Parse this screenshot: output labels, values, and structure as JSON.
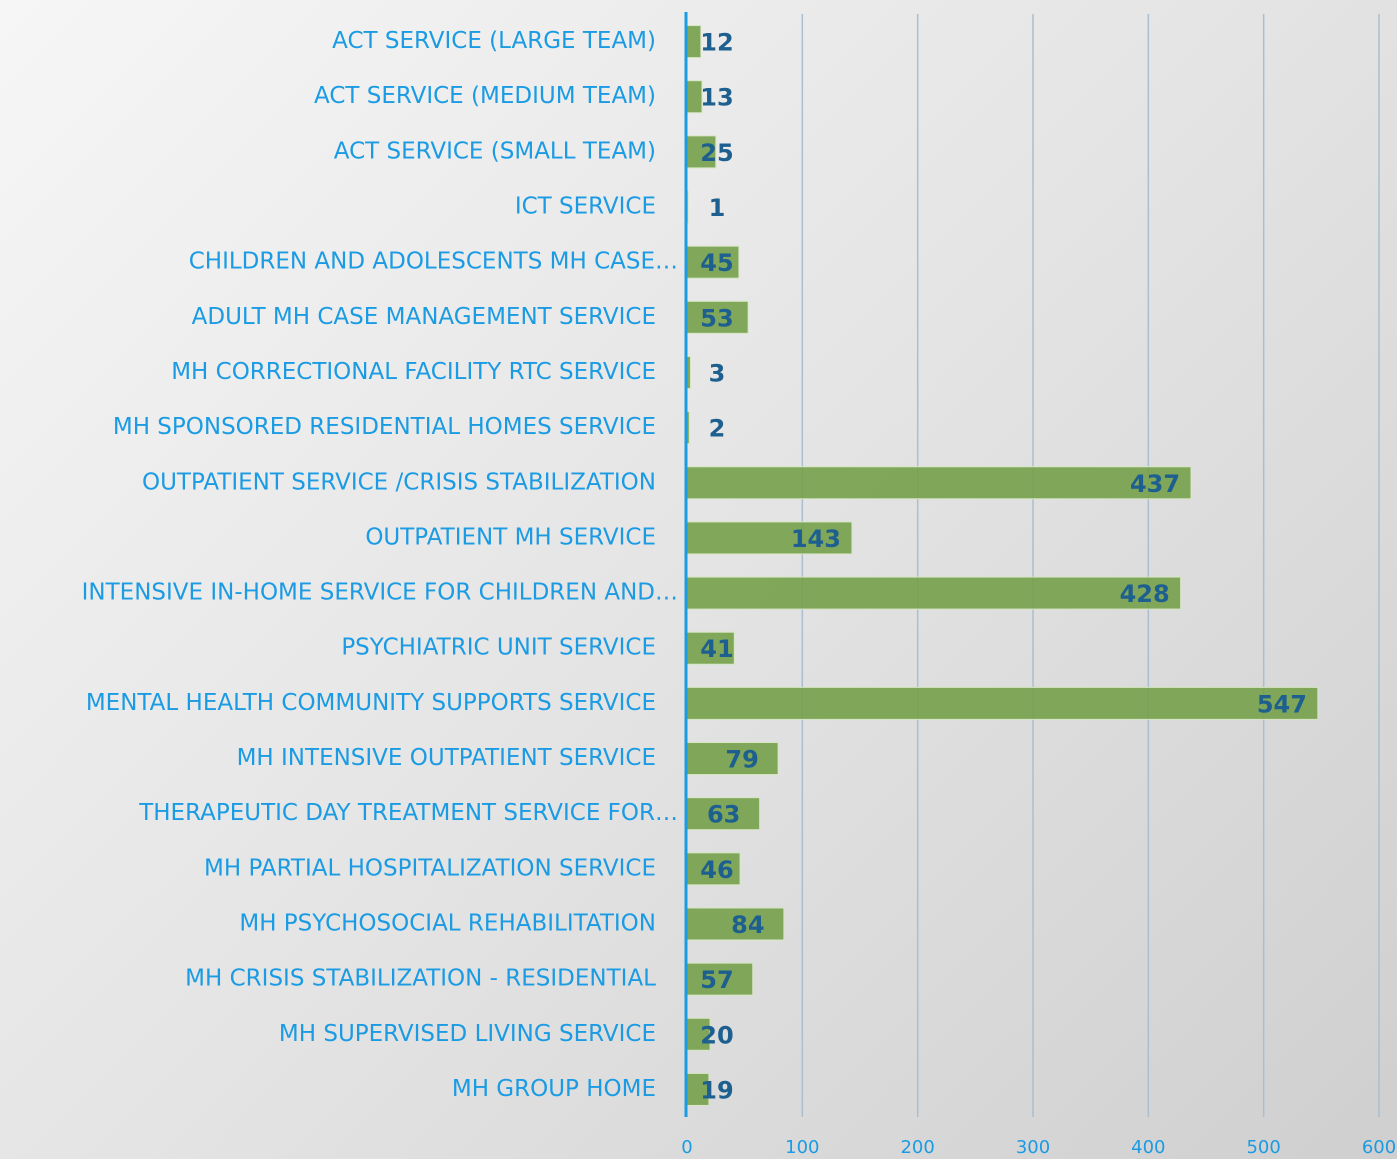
{
  "chart_data": {
    "type": "hbar",
    "categories": [
      "ACT SERVICE (LARGE TEAM)",
      "ACT SERVICE (MEDIUM TEAM)",
      "ACT SERVICE (SMALL TEAM)",
      "ICT SERVICE",
      "CHILDREN AND ADOLESCENTS MH CASE…",
      "ADULT MH CASE MANAGEMENT SERVICE",
      "MH CORRECTIONAL FACILITY RTC SERVICE",
      "MH SPONSORED RESIDENTIAL HOMES SERVICE",
      "OUTPATIENT SERVICE /CRISIS STABILIZATION",
      "OUTPATIENT MH SERVICE",
      "INTENSIVE IN-HOME SERVICE FOR CHILDREN AND…",
      "PSYCHIATRIC UNIT SERVICE",
      "MENTAL HEALTH COMMUNITY SUPPORTS SERVICE",
      "MH INTENSIVE OUTPATIENT SERVICE",
      "THERAPEUTIC DAY TREATMENT SERVICE FOR…",
      "MH PARTIAL HOSPITALIZATION SERVICE",
      "MH PSYCHOSOCIAL REHABILITATION",
      "MH CRISIS STABILIZATION - RESIDENTIAL",
      "MH SUPERVISED LIVING SERVICE",
      "MH GROUP HOME"
    ],
    "values": [
      12,
      13,
      25,
      1,
      45,
      53,
      3,
      2,
      437,
      143,
      428,
      41,
      547,
      79,
      63,
      46,
      84,
      57,
      20,
      19
    ],
    "color": "#76a04a",
    "xlim": [
      0,
      600
    ],
    "xticks": [
      0,
      100,
      200,
      300,
      400,
      500,
      600
    ],
    "grid": true
  }
}
